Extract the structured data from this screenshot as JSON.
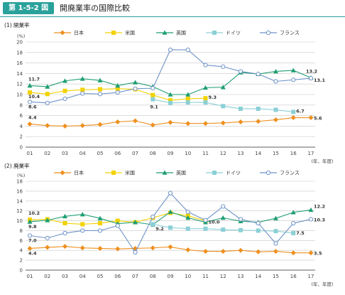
{
  "header": {
    "figure_number": "第 1-5-2 図",
    "title": "開廃業率の国際比較"
  },
  "colors": {
    "日本": "#ee8f1e",
    "米国": "#f2d200",
    "英国": "#1f9e72",
    "ドイツ": "#8bd0d6",
    "フランス": "#6f93c8"
  },
  "x_unit_label": "(年、年度)",
  "chart_data": [
    {
      "type": "line",
      "subtitle": "(1) 開業率",
      "y_unit": "(%)",
      "categories": [
        "01",
        "02",
        "03",
        "04",
        "05",
        "06",
        "07",
        "08",
        "09",
        "10",
        "11",
        "12",
        "13",
        "14",
        "15",
        "16",
        "17"
      ],
      "yticks": [
        "0",
        "2",
        "4",
        "6",
        "8",
        "10",
        "12",
        "14",
        "16",
        "18",
        "20"
      ],
      "ylim": [
        0,
        20
      ],
      "series": [
        {
          "name": "日本",
          "marker": "diamond",
          "values": [
            4.4,
            4.1,
            4.0,
            4.1,
            4.3,
            4.8,
            5.0,
            4.2,
            4.7,
            4.5,
            4.5,
            4.6,
            4.8,
            4.9,
            5.2,
            5.6,
            5.6
          ]
        },
        {
          "name": "米国",
          "marker": "square",
          "values": [
            10.4,
            10.1,
            10.7,
            10.9,
            11.0,
            11.1,
            11.0,
            9.9,
            8.9,
            9.2,
            9.3,
            null,
            null,
            null,
            null,
            null,
            null
          ]
        },
        {
          "name": "英国",
          "marker": "triangle",
          "values": [
            11.7,
            11.5,
            12.6,
            13.0,
            12.7,
            11.7,
            12.3,
            11.5,
            10.0,
            10.0,
            11.3,
            11.4,
            14.2,
            13.9,
            14.4,
            14.6,
            13.2
          ]
        },
        {
          "name": "ドイツ",
          "marker": "square",
          "values": [
            null,
            null,
            null,
            null,
            null,
            null,
            null,
            9.1,
            8.4,
            8.5,
            8.5,
            7.8,
            7.3,
            7.3,
            7.1,
            6.7,
            null
          ]
        },
        {
          "name": "フランス",
          "marker": "circle",
          "values": [
            8.6,
            8.4,
            9.2,
            10.2,
            10.1,
            10.4,
            11.1,
            11.2,
            18.5,
            18.5,
            15.6,
            15.3,
            14.4,
            13.9,
            12.5,
            12.8,
            13.1
          ]
        }
      ],
      "annotations": [
        {
          "text": "11.7",
          "x": "01",
          "y": 11.7
        },
        {
          "text": "10.4",
          "x": "01",
          "y": 10.4
        },
        {
          "text": "8.6",
          "x": "01",
          "y": 8.6
        },
        {
          "text": "4.4",
          "x": "01",
          "y": 4.4
        },
        {
          "text": "9.1",
          "x": "08",
          "y": 9.1
        },
        {
          "text": "9.3",
          "x": "11",
          "y": 9.3
        },
        {
          "text": "6.7",
          "x": "16",
          "y": 6.7
        },
        {
          "text": "13.2",
          "x": "17",
          "y": 13.2
        },
        {
          "text": "13.1",
          "x": "17",
          "y": 13.1
        },
        {
          "text": "5.6",
          "x": "17",
          "y": 5.6
        }
      ]
    },
    {
      "type": "line",
      "subtitle": "(2) 廃業率",
      "y_unit": "(%)",
      "categories": [
        "01",
        "02",
        "03",
        "04",
        "05",
        "06",
        "07",
        "08",
        "09",
        "10",
        "11",
        "12",
        "13",
        "14",
        "15",
        "16",
        "17"
      ],
      "yticks": [
        "0",
        "2",
        "4",
        "6",
        "8",
        "10",
        "12",
        "14",
        "16",
        "18"
      ],
      "ylim": [
        0,
        18
      ],
      "series": [
        {
          "name": "日本",
          "marker": "diamond",
          "values": [
            4.4,
            4.6,
            4.8,
            4.5,
            4.4,
            4.3,
            4.4,
            4.5,
            4.7,
            4.1,
            3.8,
            3.8,
            4.0,
            3.7,
            3.8,
            3.5,
            3.5
          ]
        },
        {
          "name": "米国",
          "marker": "square",
          "values": [
            10.2,
            10.3,
            9.5,
            9.3,
            9.5,
            10.0,
            9.7,
            10.6,
            11.6,
            11.0,
            10.0,
            null,
            null,
            null,
            null,
            null,
            null
          ]
        },
        {
          "name": "英国",
          "marker": "triangle",
          "values": [
            9.8,
            10.1,
            10.9,
            11.3,
            10.5,
            9.4,
            9.7,
            9.2,
            11.8,
            10.6,
            9.7,
            10.6,
            9.9,
            9.7,
            10.5,
            11.7,
            12.2
          ]
        },
        {
          "name": "ドイツ",
          "marker": "square",
          "values": [
            null,
            null,
            null,
            null,
            null,
            null,
            null,
            9.3,
            8.6,
            8.4,
            8.4,
            8.2,
            8.1,
            8.0,
            7.9,
            7.5,
            null
          ]
        },
        {
          "name": "フランス",
          "marker": "circle",
          "values": [
            7.0,
            6.5,
            7.5,
            8.0,
            8.0,
            9.0,
            3.6,
            10.8,
            15.6,
            11.8,
            10.1,
            12.9,
            10.3,
            9.5,
            5.4,
            9.5,
            10.3
          ]
        }
      ],
      "annotations": [
        {
          "text": "10.2",
          "x": "01",
          "y": 10.2
        },
        {
          "text": "9.8",
          "x": "01",
          "y": 9.8
        },
        {
          "text": "7.0",
          "x": "01",
          "y": 7.0
        },
        {
          "text": "4.4",
          "x": "01",
          "y": 4.4
        },
        {
          "text": "9.2",
          "x": "08",
          "y": 9.2
        },
        {
          "text": "10.0",
          "x": "11",
          "y": 10.0
        },
        {
          "text": "7.5",
          "x": "16",
          "y": 7.5
        },
        {
          "text": "12.2",
          "x": "17",
          "y": 12.2
        },
        {
          "text": "10.3",
          "x": "17",
          "y": 10.3
        },
        {
          "text": "3.5",
          "x": "17",
          "y": 3.5
        }
      ]
    }
  ]
}
